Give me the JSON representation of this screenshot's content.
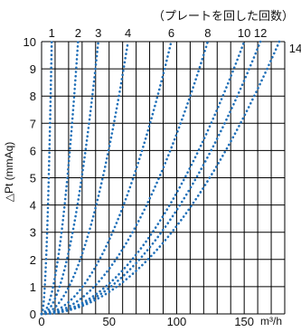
{
  "chart_data": {
    "type": "line",
    "title": "（プレートを回した回数）",
    "ylabel": "△Pt (mmAq)",
    "xlabel": "m³/h",
    "xlim": [
      0,
      180
    ],
    "ylim": [
      0,
      10
    ],
    "x_ticks": [
      0,
      50,
      100,
      150
    ],
    "y_ticks": [
      0,
      1,
      2,
      3,
      4,
      5,
      6,
      7,
      8,
      9,
      10
    ],
    "grid": true,
    "line_style": "dotted",
    "colors": {
      "series": "#1f6fb8",
      "grid": "#000000"
    },
    "series": [
      {
        "name": "1",
        "x_at_ymax": 7.5
      },
      {
        "name": "2",
        "x_at_ymax": 27
      },
      {
        "name": "3",
        "x_at_ymax": 42
      },
      {
        "name": "4",
        "x_at_ymax": 64
      },
      {
        "name": "6",
        "x_at_ymax": 96
      },
      {
        "name": "8",
        "x_at_ymax": 123
      },
      {
        "name": "10",
        "x_at_ymax": 150
      },
      {
        "name": "12",
        "x_at_ymax": 162
      },
      {
        "name": "14",
        "x_at_ymax": 176
      }
    ]
  }
}
